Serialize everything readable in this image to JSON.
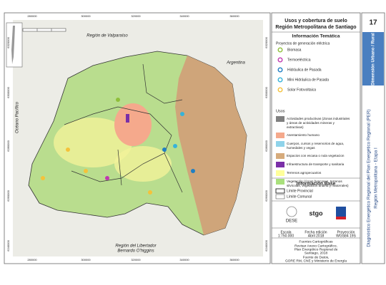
{
  "header": {
    "title_line1": "Usos y cobertura de suelo",
    "title_line2": "Región Metropolitana de Santiago",
    "sheet_number": "17",
    "dimension": "Dimensión Urbano / Rural",
    "side_title_line1": "Diagnóstico Energético Regional del Plan Energético Regional (PER)",
    "side_title_line2": "Región Metropolitana - Etapa I"
  },
  "map": {
    "x_coords": [
      "280000",
      "300000",
      "320000",
      "340000",
      "360000"
    ],
    "y_coords": [
      "6320000",
      "6300000",
      "6280000",
      "6260000",
      "6240000"
    ],
    "labels": {
      "north": "Región de Valparaíso",
      "east": "Argentina",
      "west": "Océano Pacífico",
      "south_line1": "Región del Libertador",
      "south_line2": "Bernardo O'higgins"
    }
  },
  "legend": {
    "title": "Información Temática",
    "projects_title": "Proyectos de generación eléctrica",
    "projects": [
      {
        "name": "Biomasa",
        "color": "#8fbf3a"
      },
      {
        "name": "Termoeléctrica",
        "color": "#c03ab0"
      },
      {
        "name": "Hidráulica de Pasada",
        "color": "#1f7fc4"
      },
      {
        "name": "Mini Hidráulica de Pasada",
        "color": "#36b3d9"
      },
      {
        "name": "Solar Fotovoltaica",
        "color": "#f5c23a"
      }
    ],
    "uses_title": "Usos",
    "uses": [
      {
        "name": "Actividades productivas (Zonas industriales y áreas de actividades mineras y extractivas)",
        "color": "#808080"
      },
      {
        "name": "Asentamiento humano",
        "color": "#f5a98c"
      },
      {
        "name": "Cuerpos, cursos y reservorios de agua, humedales y vegas",
        "color": "#8fd3ea"
      },
      {
        "name": "Espacios con escasa o nula vegetacion",
        "color": "#d6ab7c"
      },
      {
        "name": "Infraestructura de transporte y sanitaria",
        "color": "#7a2fa8"
      },
      {
        "name": "Terrenos agropecuarios",
        "color": "#ffff9a"
      },
      {
        "name": "Vegetación (Áreas boscosas, terrenos silvícolas, vegetación andina y matorrales)",
        "color": "#a9e07c"
      }
    ],
    "base_title": "Información Base",
    "base": [
      "Límite Provincial",
      "Límite Comunal"
    ]
  },
  "logos": [
    "DESE",
    "stgo"
  ],
  "footer": {
    "headers": [
      "Escala",
      "Fecha edición",
      "Proyección"
    ],
    "values": [
      "1:750.000",
      "Abril 2018",
      "WGS84 19S"
    ],
    "sources_title": "Fuentes Cartográficas",
    "sources": [
      "Revisar Anexo Cartográfico,",
      "Plan Energético Regional de",
      "Santiago, 2018"
    ],
    "data_title": "Fuente de Datos,",
    "data_source": "GORE RM, CNE y Ministerio de Energía"
  }
}
